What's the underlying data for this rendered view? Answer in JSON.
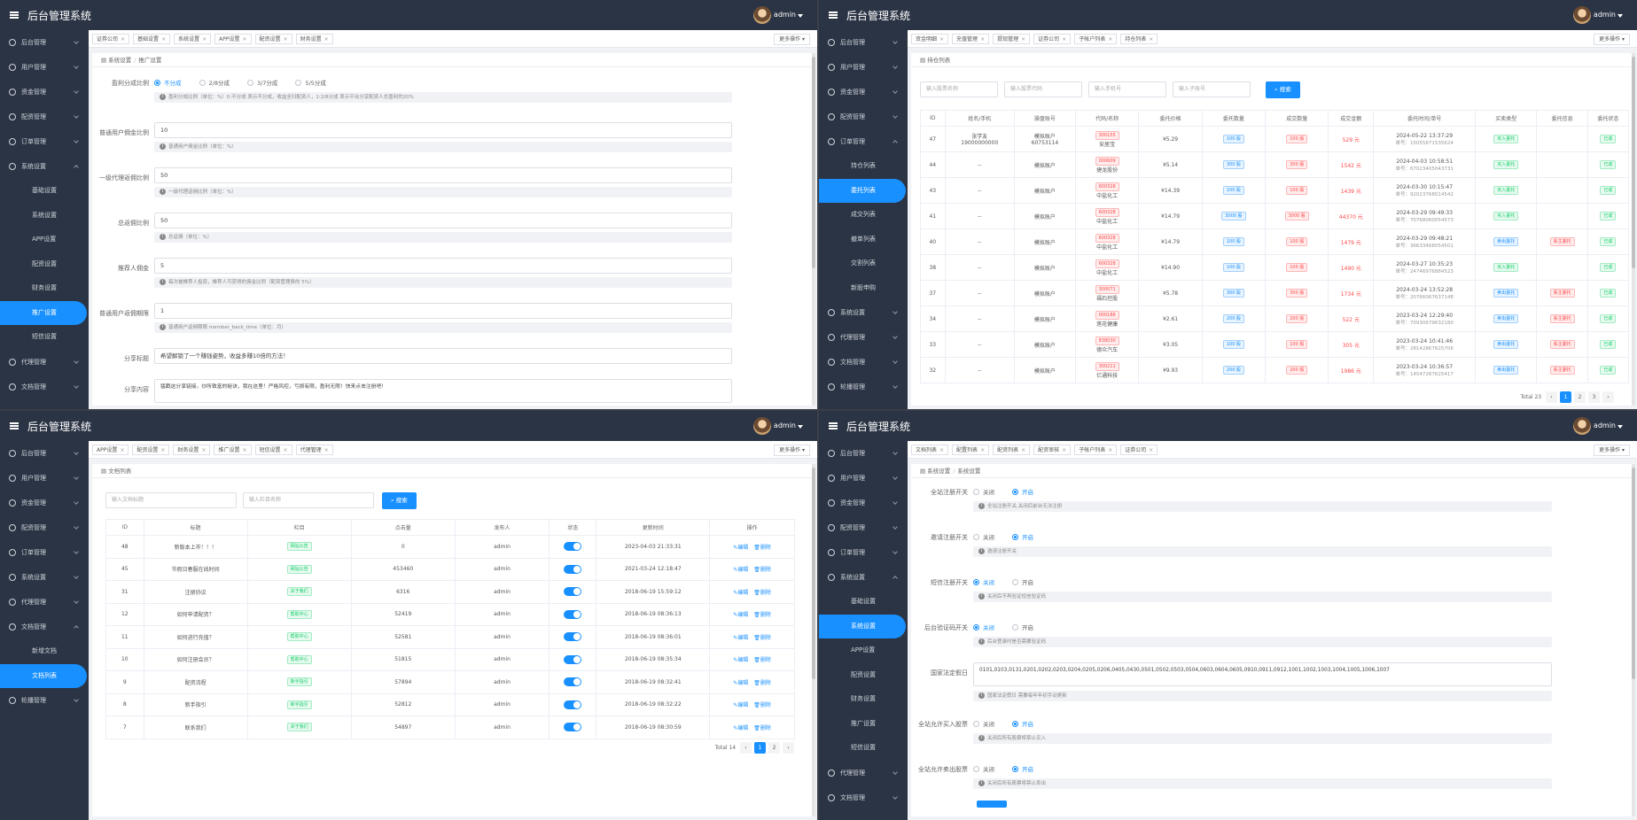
{
  "app_title": "后台管理系统",
  "user": {
    "name": "admin"
  },
  "more_ops": "更多操作",
  "colors": {
    "sidebar": "#2b3444",
    "accent": "#1890ff",
    "danger": "#ff4949",
    "success": "#13ce66"
  },
  "panels": [
    {
      "menu": [
        {
          "label": "后台管理",
          "icon": "home-icon"
        },
        {
          "label": "用户管理",
          "icon": "user-icon"
        },
        {
          "label": "资金管理",
          "icon": "wallet-icon"
        },
        {
          "label": "配资管理",
          "icon": "chart-icon"
        },
        {
          "label": "订单管理",
          "icon": "order-icon"
        },
        {
          "label": "系统设置",
          "icon": "gear-icon",
          "open": true,
          "children": [
            "基础设置",
            "系统设置",
            "APP设置",
            "配资设置",
            "财务设置",
            "推广设置",
            "短信设置"
          ],
          "active": 5
        },
        {
          "label": "代理管理",
          "icon": "agent-icon"
        },
        {
          "label": "文档管理",
          "icon": "doc-icon"
        }
      ],
      "tabs": [
        "证券公司",
        "基础设置",
        "系统设置",
        "APP设置",
        "配资设置",
        "财务设置"
      ],
      "breadcrumb": [
        "系统设置",
        "推广设置"
      ],
      "form": {
        "split_label": "盈利分成比例",
        "split_options": [
          "不分成",
          "2/8分成",
          "3/7分成",
          "5/5分成"
        ],
        "split_help": "盈利分成比例（单位：%）0:不分成 表示不分成，收益全归配资人，1:2/8分成 表示平台分享配资人总盈利的20%",
        "fields": [
          {
            "label": "普通用户佣金比例",
            "value": "10",
            "help": "普通用户佣金比例（单位：%）"
          },
          {
            "label": "一级代理返佣比例",
            "value": "50",
            "help": "一级代理返佣比例（单位：%）"
          },
          {
            "label": "总返佣比例",
            "value": "50",
            "help": "总返佣（单位：%）"
          },
          {
            "label": "推荐人佣金",
            "value": "5",
            "help": "每次被推荐人投资，推荐人可获得的佣金比例（配资管理费的 5%）"
          },
          {
            "label": "普通用户返佣期限",
            "value": "1",
            "help": "普通用户返佣期限 member_back_time（单位：月）"
          },
          {
            "label": "分享标题",
            "value": "希望解锁了一个赚钱姿势，收益多赚10倍的方法！"
          }
        ],
        "share_content_label": "分享内容",
        "share_content_value": "猛戳这分享链接，炒所致富的秘诀，我在这里！严格风控，亏损有限，盈利无限！快来点击注册吧！"
      }
    },
    {
      "menu": [
        {
          "label": "后台管理",
          "icon": "home-icon"
        },
        {
          "label": "用户管理",
          "icon": "user-icon"
        },
        {
          "label": "资金管理",
          "icon": "wallet-icon"
        },
        {
          "label": "配资管理",
          "icon": "chart-icon"
        },
        {
          "label": "订单管理",
          "icon": "order-icon",
          "open": true,
          "children": [
            "持仓列表",
            "委托列表",
            "成交列表",
            "撤单列表",
            "交割列表",
            "新股申购"
          ],
          "active": 1
        },
        {
          "label": "系统设置",
          "icon": "gear-icon"
        },
        {
          "label": "代理管理",
          "icon": "agent-icon"
        },
        {
          "label": "文档管理",
          "icon": "doc-icon"
        },
        {
          "label": "轮播管理",
          "icon": "image-icon"
        }
      ],
      "tabs": [
        "资金明细",
        "充值管理",
        "提现管理",
        "证券公司",
        "子帐户列表",
        "持仓列表"
      ],
      "breadcrumb": [
        "持仓列表"
      ],
      "search": {
        "placeholders": [
          "输入股票名称",
          "输入股票代码",
          "输入手机号",
          "输入子账号"
        ],
        "button": "搜索"
      },
      "table": {
        "headers": [
          "ID",
          "姓名/手机",
          "操盘账号",
          "代码/名称",
          "委托价格",
          "委托数量",
          "成交数量",
          "成交金额",
          "委托时间/单号",
          "买卖类型",
          "委托信息",
          "委托状态"
        ],
        "rows": [
          {
            "id": "47",
            "name": "张学友",
            "phone": "19000000000",
            "acct": "模拟账户",
            "acct2": "60753114",
            "code": "300155",
            "sname": "安居宝",
            "price": "¥5.29",
            "qty": "100 股",
            "deal": "100 股",
            "amount": "529 元",
            "time": "2024-05-22 13:37:29",
            "no": "单号：15055871535624",
            "type": "买入委托",
            "info": "",
            "status": "已成"
          },
          {
            "id": "44",
            "name": "--",
            "phone": "",
            "acct": "模拟账户",
            "acct2": "",
            "code": "000609",
            "sname": "捷龙股份",
            "price": "¥5.14",
            "qty": "300 股",
            "deal": "300 股",
            "amount": "1542 元",
            "time": "2024-04-03 10:58:51",
            "no": "单号：67023405043731",
            "type": "买入委托",
            "info": "",
            "status": "已成"
          },
          {
            "id": "43",
            "name": "--",
            "phone": "",
            "acct": "模拟账户",
            "acct2": "",
            "code": "600328",
            "sname": "中盐化工",
            "price": "¥14.39",
            "qty": "100 股",
            "deal": "100 股",
            "amount": "1439 元",
            "time": "2024-03-30 10:15:47",
            "no": "单号：92023768014542",
            "type": "买入委托",
            "info": "",
            "status": "已成"
          },
          {
            "id": "41",
            "name": "--",
            "phone": "",
            "acct": "模拟账户",
            "acct2": "",
            "code": "600328",
            "sname": "中盐化工",
            "price": "¥14.79",
            "qty": "3000 股",
            "deal": "3000 股",
            "amount": "44370 元",
            "time": "2024-03-29 09:49:33",
            "no": "单号：70768060054573",
            "type": "买入委托",
            "info": "",
            "status": "已成"
          },
          {
            "id": "40",
            "name": "--",
            "phone": "",
            "acct": "模拟账户",
            "acct2": "",
            "code": "600328",
            "sname": "中盐化工",
            "price": "¥14.79",
            "qty": "100 股",
            "deal": "100 股",
            "amount": "1479 元",
            "time": "2024-03-29 09:48:21",
            "no": "单号：36633468054501",
            "type": "卖出委托",
            "info": "系主委托",
            "status": "已成"
          },
          {
            "id": "38",
            "name": "--",
            "phone": "",
            "acct": "模拟账户",
            "acct2": "",
            "code": "600328",
            "sname": "中盐化工",
            "price": "¥14.90",
            "qty": "100 股",
            "deal": "100 股",
            "amount": "1490 元",
            "time": "2024-03-27 10:35:23",
            "no": "单号：24746976884523",
            "type": "买入委托",
            "info": "",
            "status": "已成"
          },
          {
            "id": "37",
            "name": "--",
            "phone": "",
            "acct": "模拟账户",
            "acct2": "",
            "code": "300071",
            "sname": "福石控股",
            "price": "¥5.78",
            "qty": "300 股",
            "deal": "300 股",
            "amount": "1734 元",
            "time": "2024-03-24 13:52:28",
            "no": "单号：20766067637148",
            "type": "卖出委托",
            "info": "系主委托",
            "status": "已成"
          },
          {
            "id": "34",
            "name": "--",
            "phone": "",
            "acct": "模拟账户",
            "acct2": "",
            "code": "000188",
            "sname": "莲花健康",
            "price": "¥2.61",
            "qty": "200 股",
            "deal": "200 股",
            "amount": "522 元",
            "time": "2023-03-24 12:29:40",
            "no": "单号：70930679632180",
            "type": "卖出委托",
            "info": "系主委托",
            "status": "已成"
          },
          {
            "id": "33",
            "name": "--",
            "phone": "",
            "acct": "模拟账户",
            "acct2": "",
            "code": "838030",
            "sname": "德众汽车",
            "price": "¥3.05",
            "qty": "100 股",
            "deal": "100 股",
            "amount": "305 元",
            "time": "2023-03-24 10:41:46",
            "no": "单号：28142867625706",
            "type": "卖出委托",
            "info": "系主委托",
            "status": "已成"
          },
          {
            "id": "32",
            "name": "--",
            "phone": "",
            "acct": "模拟账户",
            "acct2": "",
            "code": "300211",
            "sname": "亿通科技",
            "price": "¥9.93",
            "qty": "200 股",
            "deal": "200 股",
            "amount": "1986 元",
            "time": "2023-03-24 10:36:57",
            "no": "单号：14547267625417",
            "type": "卖出委托",
            "info": "系主委托",
            "status": "已成"
          }
        ]
      },
      "pagination": {
        "total": "Total 23",
        "pages": [
          "1",
          "2",
          "3"
        ],
        "prev": "‹",
        "next": "›"
      }
    },
    {
      "menu": [
        {
          "label": "后台管理",
          "icon": "home-icon"
        },
        {
          "label": "用户管理",
          "icon": "user-icon"
        },
        {
          "label": "资金管理",
          "icon": "wallet-icon"
        },
        {
          "label": "配资管理",
          "icon": "chart-icon"
        },
        {
          "label": "订单管理",
          "icon": "order-icon"
        },
        {
          "label": "系统设置",
          "icon": "gear-icon"
        },
        {
          "label": "代理管理",
          "icon": "agent-icon"
        },
        {
          "label": "文档管理",
          "icon": "doc-icon",
          "open": true,
          "children": [
            "新增文档",
            "文档列表"
          ],
          "active": 1
        },
        {
          "label": "轮播管理",
          "icon": "image-icon"
        }
      ],
      "tabs": [
        "APP设置",
        "配资设置",
        "财务设置",
        "推广设置",
        "短信设置",
        "代理管理"
      ],
      "breadcrumb": [
        "文档列表"
      ],
      "search": {
        "placeholders": [
          "输入文档标题",
          "输入栏目名称"
        ],
        "button": "搜索"
      },
      "table": {
        "headers": [
          "ID",
          "标题",
          "栏目",
          "点击量",
          "发布人",
          "状态",
          "更新时间",
          "操作"
        ],
        "rows": [
          {
            "id": "48",
            "title": "新版本上市！！！",
            "cat": "网站公告",
            "clicks": "0",
            "author": "admin",
            "time": "2023-04-03 21:33:31"
          },
          {
            "id": "45",
            "title": "节假日春服在线时间",
            "cat": "网站公告",
            "clicks": "453460",
            "author": "admin",
            "time": "2021-03-24 12:18:47"
          },
          {
            "id": "31",
            "title": "注册协议",
            "cat": "关于我们",
            "clicks": "6316",
            "author": "admin",
            "time": "2018-06-19 15:59:12"
          },
          {
            "id": "12",
            "title": "如何申请配资？",
            "cat": "帮助中心",
            "clicks": "52419",
            "author": "admin",
            "time": "2018-06-19 08:36:13"
          },
          {
            "id": "11",
            "title": "如何进行充值？",
            "cat": "帮助中心",
            "clicks": "52581",
            "author": "admin",
            "time": "2018-06-19 08:36:01"
          },
          {
            "id": "10",
            "title": "如何注册会员？",
            "cat": "帮助中心",
            "clicks": "51815",
            "author": "admin",
            "time": "2018-06-19 08:35:34"
          },
          {
            "id": "9",
            "title": "配资流程",
            "cat": "新手指引",
            "clicks": "57894",
            "author": "admin",
            "time": "2018-06-19 08:32:41"
          },
          {
            "id": "8",
            "title": "新手指引",
            "cat": "新手指引",
            "clicks": "52812",
            "author": "admin",
            "time": "2018-06-19 08:32:22"
          },
          {
            "id": "7",
            "title": "联系我们",
            "cat": "关于我们",
            "clicks": "54897",
            "author": "admin",
            "time": "2018-06-19 08:30:59"
          }
        ],
        "edit": "编辑",
        "delete": "删除"
      },
      "pagination": {
        "total": "Total 14",
        "pages": [
          "1",
          "2"
        ],
        "prev": "‹",
        "next": "›"
      }
    },
    {
      "menu": [
        {
          "label": "后台管理",
          "icon": "home-icon"
        },
        {
          "label": "用户管理",
          "icon": "user-icon"
        },
        {
          "label": "资金管理",
          "icon": "wallet-icon"
        },
        {
          "label": "配资管理",
          "icon": "chart-icon"
        },
        {
          "label": "订单管理",
          "icon": "order-icon"
        },
        {
          "label": "系统设置",
          "icon": "gear-icon",
          "open": true,
          "children": [
            "基础设置",
            "系统设置",
            "APP设置",
            "配资设置",
            "财务设置",
            "推广设置",
            "短信设置"
          ],
          "active": 1
        },
        {
          "label": "代理管理",
          "icon": "agent-icon"
        },
        {
          "label": "文档管理",
          "icon": "doc-icon"
        }
      ],
      "tabs": [
        "文档列表",
        "配置列表",
        "配资列表",
        "配资审核",
        "子帐户列表",
        "证券公司"
      ],
      "breadcrumb": [
        "系统设置",
        "系统设置"
      ],
      "form": {
        "off": "关闭",
        "on": "开启",
        "switches": [
          {
            "label": "全站注册开关",
            "state": "on",
            "help": "全站注册开关,关闭后前台无法注册"
          },
          {
            "label": "邀请注册开关",
            "state": "on",
            "help": "邀请注册开关"
          },
          {
            "label": "短信注册开关",
            "state": "off",
            "help": "关闭后不再验证短信验证码"
          },
          {
            "label": "后台验证码开关",
            "state": "off",
            "help": "后台登录时是否需要验证码"
          }
        ],
        "holiday_label": "国家法定假日",
        "holiday_value": "0101,0103,0131,0201,0202,0203,0204,0205,0206,0405,0430,0501,0502,0503,0504,0603,0604,0605,0910,0911,0912,1001,1002,1003,1004,1005,1006,1007",
        "holiday_help": "国家法定假日 需要每年年初手动更新",
        "switches2": [
          {
            "label": "全站允许买入股票",
            "state": "on",
            "help": "关闭后所有股票将禁止买入"
          },
          {
            "label": "全站允许卖出股票",
            "state": "on",
            "help": "关闭后所有股票将禁止卖出"
          }
        ]
      }
    }
  ]
}
